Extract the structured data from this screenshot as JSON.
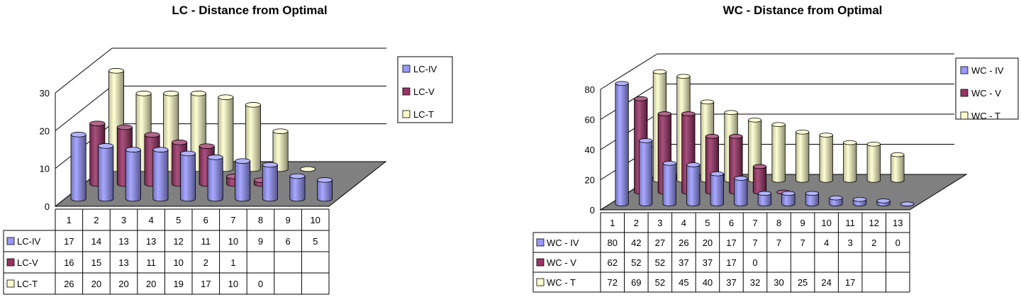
{
  "chart_data": [
    {
      "type": "bar",
      "title": "LC - Distance from Optimal",
      "categories": [
        "1",
        "2",
        "3",
        "4",
        "5",
        "6",
        "7",
        "8",
        "9",
        "10"
      ],
      "series": [
        {
          "name": "LC-IV",
          "values": [
            17,
            14,
            13,
            13,
            12,
            11,
            10,
            9,
            6,
            5
          ]
        },
        {
          "name": "LC-V",
          "values": [
            16,
            15,
            13,
            11,
            10,
            2,
            1,
            null,
            null,
            null
          ]
        },
        {
          "name": "LC-T",
          "values": [
            26,
            20,
            20,
            20,
            19,
            17,
            10,
            0,
            null,
            null
          ]
        }
      ],
      "ylim": [
        0,
        30
      ],
      "yticks": [
        "0",
        "10",
        "20",
        "30"
      ],
      "grid": true,
      "legend": "right",
      "data_table": true,
      "three_d": true
    },
    {
      "type": "bar",
      "title": "WC - Distance from Optimal",
      "categories": [
        "1",
        "2",
        "3",
        "4",
        "5",
        "6",
        "7",
        "8",
        "9",
        "10",
        "11",
        "12",
        "13"
      ],
      "series": [
        {
          "name": "WC - IV",
          "values": [
            80,
            42,
            27,
            26,
            20,
            17,
            7,
            7,
            7,
            4,
            3,
            2,
            0
          ]
        },
        {
          "name": "WC - V",
          "values": [
            62,
            52,
            52,
            37,
            37,
            17,
            0,
            null,
            null,
            null,
            null,
            null,
            null
          ]
        },
        {
          "name": "WC - T",
          "values": [
            72,
            69,
            52,
            45,
            40,
            37,
            32,
            30,
            25,
            24,
            17,
            null,
            null
          ]
        }
      ],
      "ylim": [
        0,
        80
      ],
      "yticks": [
        "0",
        "20",
        "40",
        "60",
        "80"
      ],
      "grid": true,
      "legend": "right",
      "data_table": true,
      "three_d": true
    }
  ],
  "colors": {
    "series_1": "#9999ff",
    "series_2": "#993366",
    "series_3": "#ffffcc",
    "floor": "#808080",
    "grid": "#000000"
  }
}
